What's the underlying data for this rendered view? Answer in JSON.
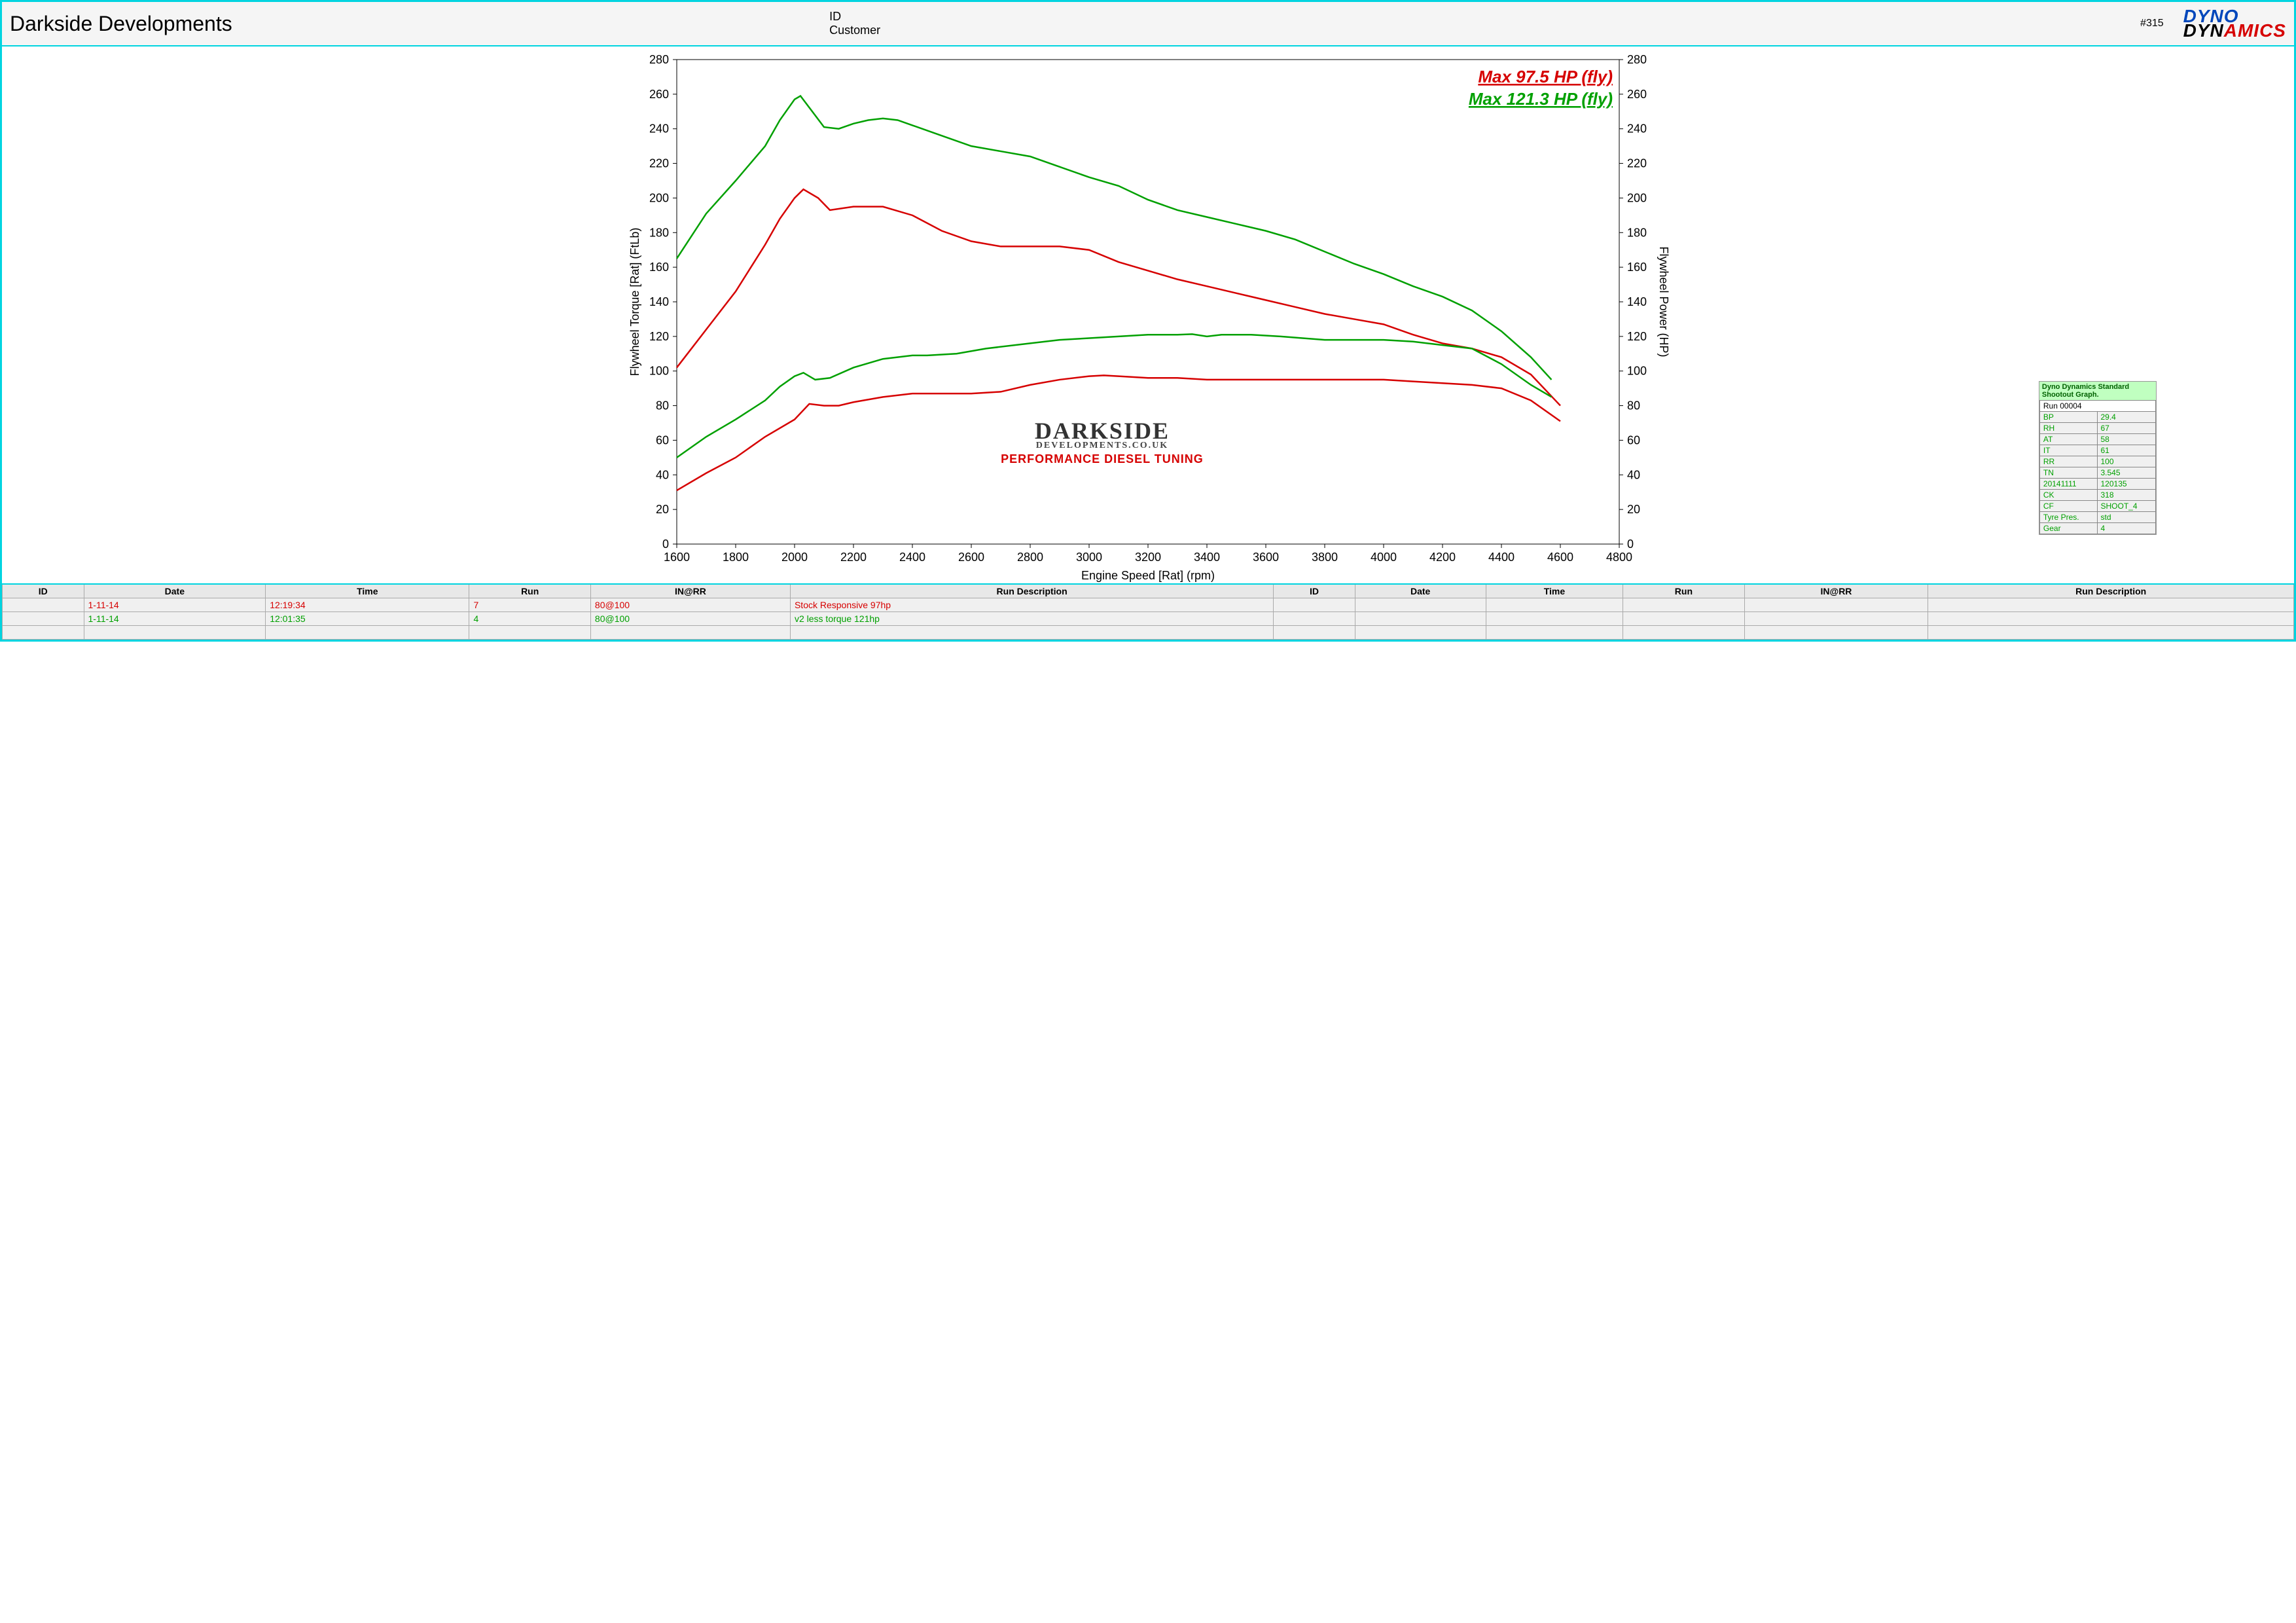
{
  "header": {
    "title": "Darkside Developments",
    "id_label": "ID",
    "customer_label": "Customer",
    "run_id": "#315",
    "logo_line1": "DYNO",
    "logo_line2_a": "DYN",
    "logo_line2_b": "AMICS"
  },
  "chart": {
    "type": "line",
    "x_axis": {
      "label": "Engine Speed [Rat] (rpm)",
      "min": 1600,
      "max": 4800,
      "step": 200,
      "ticks": [
        1600,
        1800,
        2000,
        2200,
        2400,
        2600,
        2800,
        3000,
        3200,
        3400,
        3600,
        3800,
        4000,
        4200,
        4400,
        4600,
        4800
      ]
    },
    "y_left": {
      "label": "Flywheel Torque [Rat] (FtLb)",
      "min": 0,
      "max": 280,
      "step": 20,
      "ticks": [
        0,
        20,
        40,
        60,
        80,
        100,
        120,
        140,
        160,
        180,
        200,
        220,
        240,
        260,
        280
      ]
    },
    "y_right": {
      "label": "Flywheel Power (HP)",
      "min": 0,
      "max": 280,
      "step": 20,
      "ticks": [
        0,
        20,
        40,
        60,
        80,
        100,
        120,
        140,
        160,
        180,
        200,
        220,
        240,
        260,
        280
      ]
    },
    "background_color": "#ffffff",
    "line_width": 2.5,
    "max_labels": [
      {
        "text": "Max 97.5 HP (fly)",
        "color": "#d60000"
      },
      {
        "text": "Max 121.3 HP (fly)",
        "color": "#00a000"
      }
    ],
    "series": {
      "red_torque": {
        "color": "#d60000",
        "axis": "left",
        "points": [
          [
            1600,
            102
          ],
          [
            1700,
            124
          ],
          [
            1800,
            146
          ],
          [
            1900,
            173
          ],
          [
            1950,
            188
          ],
          [
            2000,
            200
          ],
          [
            2030,
            205
          ],
          [
            2080,
            200
          ],
          [
            2120,
            193
          ],
          [
            2200,
            195
          ],
          [
            2300,
            195
          ],
          [
            2400,
            190
          ],
          [
            2500,
            181
          ],
          [
            2600,
            175
          ],
          [
            2700,
            172
          ],
          [
            2800,
            172
          ],
          [
            2900,
            172
          ],
          [
            3000,
            170
          ],
          [
            3100,
            163
          ],
          [
            3200,
            158
          ],
          [
            3300,
            153
          ],
          [
            3400,
            149
          ],
          [
            3500,
            145
          ],
          [
            3600,
            141
          ],
          [
            3700,
            137
          ],
          [
            3800,
            133
          ],
          [
            3900,
            130
          ],
          [
            4000,
            127
          ],
          [
            4100,
            121
          ],
          [
            4200,
            116
          ],
          [
            4300,
            113
          ],
          [
            4400,
            108
          ],
          [
            4500,
            98
          ],
          [
            4600,
            80
          ]
        ]
      },
      "green_torque": {
        "color": "#00a000",
        "axis": "left",
        "points": [
          [
            1600,
            165
          ],
          [
            1700,
            191
          ],
          [
            1800,
            210
          ],
          [
            1900,
            230
          ],
          [
            1950,
            245
          ],
          [
            2000,
            257
          ],
          [
            2020,
            259
          ],
          [
            2060,
            250
          ],
          [
            2100,
            241
          ],
          [
            2150,
            240
          ],
          [
            2200,
            243
          ],
          [
            2250,
            245
          ],
          [
            2300,
            246
          ],
          [
            2350,
            245
          ],
          [
            2400,
            242
          ],
          [
            2500,
            236
          ],
          [
            2600,
            230
          ],
          [
            2700,
            227
          ],
          [
            2800,
            224
          ],
          [
            2900,
            218
          ],
          [
            3000,
            212
          ],
          [
            3100,
            207
          ],
          [
            3200,
            199
          ],
          [
            3300,
            193
          ],
          [
            3400,
            189
          ],
          [
            3500,
            185
          ],
          [
            3600,
            181
          ],
          [
            3700,
            176
          ],
          [
            3800,
            169
          ],
          [
            3900,
            162
          ],
          [
            4000,
            156
          ],
          [
            4100,
            149
          ],
          [
            4200,
            143
          ],
          [
            4300,
            135
          ],
          [
            4400,
            123
          ],
          [
            4500,
            108
          ],
          [
            4570,
            95
          ]
        ]
      },
      "red_power": {
        "color": "#d60000",
        "axis": "right",
        "points": [
          [
            1600,
            31
          ],
          [
            1700,
            41
          ],
          [
            1800,
            50
          ],
          [
            1900,
            62
          ],
          [
            2000,
            72
          ],
          [
            2050,
            81
          ],
          [
            2100,
            80
          ],
          [
            2150,
            80
          ],
          [
            2200,
            82
          ],
          [
            2300,
            85
          ],
          [
            2400,
            87
          ],
          [
            2500,
            87
          ],
          [
            2600,
            87
          ],
          [
            2700,
            88
          ],
          [
            2800,
            92
          ],
          [
            2900,
            95
          ],
          [
            3000,
            97
          ],
          [
            3050,
            97.5
          ],
          [
            3100,
            97
          ],
          [
            3200,
            96
          ],
          [
            3300,
            96
          ],
          [
            3400,
            95
          ],
          [
            3500,
            95
          ],
          [
            3600,
            95
          ],
          [
            3700,
            95
          ],
          [
            3800,
            95
          ],
          [
            3900,
            95
          ],
          [
            4000,
            95
          ],
          [
            4100,
            94
          ],
          [
            4200,
            93
          ],
          [
            4300,
            92
          ],
          [
            4400,
            90
          ],
          [
            4500,
            83
          ],
          [
            4600,
            71
          ]
        ]
      },
      "green_power": {
        "color": "#00a000",
        "axis": "right",
        "points": [
          [
            1600,
            50
          ],
          [
            1700,
            62
          ],
          [
            1800,
            72
          ],
          [
            1900,
            83
          ],
          [
            1950,
            91
          ],
          [
            2000,
            97
          ],
          [
            2030,
            99
          ],
          [
            2070,
            95
          ],
          [
            2120,
            96
          ],
          [
            2200,
            102
          ],
          [
            2300,
            107
          ],
          [
            2400,
            109
          ],
          [
            2450,
            109
          ],
          [
            2550,
            110
          ],
          [
            2650,
            113
          ],
          [
            2800,
            116
          ],
          [
            2900,
            118
          ],
          [
            3000,
            119
          ],
          [
            3100,
            120
          ],
          [
            3200,
            121
          ],
          [
            3300,
            121
          ],
          [
            3350,
            121.3
          ],
          [
            3400,
            120
          ],
          [
            3450,
            121
          ],
          [
            3550,
            121
          ],
          [
            3650,
            120
          ],
          [
            3800,
            118
          ],
          [
            3900,
            118
          ],
          [
            4000,
            118
          ],
          [
            4100,
            117
          ],
          [
            4200,
            115
          ],
          [
            4300,
            113
          ],
          [
            4400,
            104
          ],
          [
            4500,
            92
          ],
          [
            4570,
            85
          ]
        ]
      }
    }
  },
  "info_box": {
    "title": "Dyno Dynamics Standard Shootout Graph.",
    "run_label": "Run 00004",
    "rows": [
      [
        "BP",
        "29.4"
      ],
      [
        "RH",
        "67"
      ],
      [
        "AT",
        "58"
      ],
      [
        "IT",
        "61"
      ],
      [
        "RR",
        "100"
      ],
      [
        "TN",
        "3.545"
      ],
      [
        "20141111",
        "120135"
      ],
      [
        "CK",
        "318"
      ],
      [
        "CF",
        "SHOOT_4"
      ],
      [
        "Tyre Pres.",
        "std"
      ],
      [
        "Gear",
        "4"
      ]
    ],
    "label_color": "#00a000",
    "bg": "#f0f0f0",
    "title_bg": "#c0ffc0"
  },
  "watermark": {
    "line1": "DARKSIDE",
    "line2": "DEVELOPMENTS.CO.UK",
    "line3": "PERFORMANCE DIESEL TUNING"
  },
  "runs_table": {
    "columns": [
      "ID",
      "Date",
      "Time",
      "Run",
      "IN@RR",
      "Run Description",
      "ID",
      "Date",
      "Time",
      "Run",
      "IN@RR",
      "Run Description"
    ],
    "rows": [
      {
        "color": "#d60000",
        "cells": [
          "",
          "1-11-14",
          "12:19:34",
          "7",
          "80@100",
          "Stock Responsive 97hp",
          "",
          "",
          "",
          "",
          "",
          ""
        ]
      },
      {
        "color": "#00a000",
        "cells": [
          "",
          "1-11-14",
          "12:01:35",
          "4",
          "80@100",
          "v2 less torque 121hp",
          "",
          "",
          "",
          "",
          "",
          ""
        ]
      },
      {
        "color": "#000",
        "cells": [
          "",
          "",
          "",
          "",
          "",
          "",
          "",
          "",
          "",
          "",
          "",
          ""
        ]
      }
    ]
  }
}
